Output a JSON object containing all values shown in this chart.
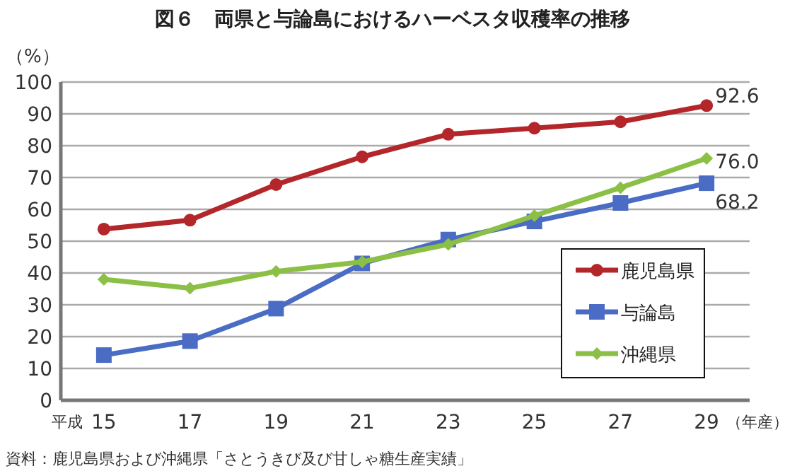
{
  "chart_data": {
    "type": "line",
    "title": "図６　両県と与論島におけるハーベスタ収穫率の推移",
    "ylabel": "（%）",
    "xlabel": "（年産）",
    "categories": [
      "15",
      "17",
      "19",
      "21",
      "23",
      "25",
      "27",
      "29"
    ],
    "series": [
      {
        "name": "鹿児島県",
        "color": "#b3262a",
        "marker": "circle",
        "values": [
          53.8,
          56.6,
          67.8,
          76.5,
          83.6,
          85.5,
          87.5,
          92.6
        ],
        "value_labels": [
          null,
          null,
          null,
          null,
          null,
          null,
          null,
          "92.6"
        ]
      },
      {
        "name": "与論島",
        "color": "#4a6cc4",
        "marker": "square",
        "values": [
          14.2,
          18.6,
          28.8,
          43.0,
          50.5,
          56.2,
          62.0,
          68.2
        ],
        "value_labels": [
          null,
          null,
          null,
          null,
          null,
          null,
          null,
          "68.2"
        ]
      },
      {
        "name": "沖縄県",
        "color": "#8cbf46",
        "marker": "diamond",
        "values": [
          38.0,
          35.2,
          40.5,
          43.5,
          49.0,
          58.0,
          66.8,
          76.0
        ],
        "value_labels": [
          null,
          null,
          null,
          null,
          null,
          null,
          null,
          "76.0"
        ]
      }
    ],
    "ylim": [
      0,
      100
    ],
    "yticks": [
      0,
      10,
      20,
      30,
      40,
      50,
      60,
      70,
      80,
      90,
      100
    ],
    "grid": "y",
    "legend": "bottom right",
    "annotations": [
      "平成",
      "資料：鹿児島県および沖縄県「さとうきび及び甘しゃ糖生産実績」"
    ]
  }
}
